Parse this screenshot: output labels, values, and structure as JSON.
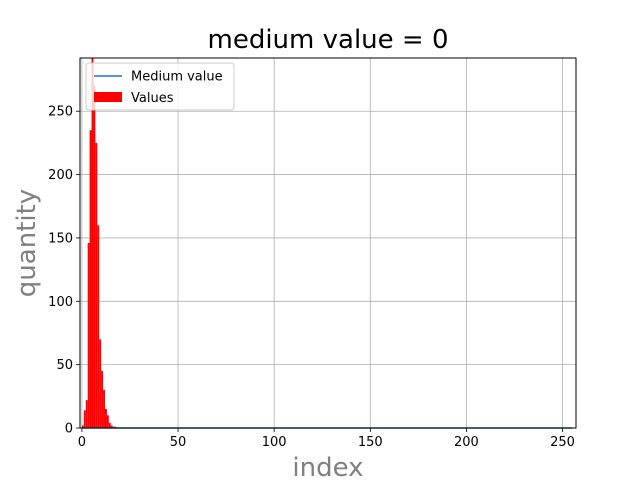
{
  "chart_data": {
    "type": "bar",
    "title": "medium value = 0",
    "xlabel": "index",
    "ylabel": "quantity",
    "xlim": [
      -1,
      257
    ],
    "ylim": [
      0,
      292
    ],
    "x_ticks": [
      0,
      50,
      100,
      150,
      200,
      250
    ],
    "y_ticks": [
      0,
      50,
      100,
      150,
      200,
      250
    ],
    "grid": true,
    "legend_position": "upper left",
    "series": [
      {
        "name": "Medium value",
        "type": "line",
        "color": "#1f77b4",
        "x": [
          0,
          255
        ],
        "y": [
          0,
          0
        ]
      },
      {
        "name": "Values",
        "type": "bar",
        "color": "#ff0000",
        "x": [
          0,
          1,
          2,
          3,
          4,
          5,
          6,
          7,
          8,
          9,
          10,
          11,
          12,
          13,
          14,
          15,
          16,
          17
        ],
        "values": [
          2,
          14,
          22,
          146,
          235,
          292,
          270,
          225,
          160,
          70,
          45,
          30,
          15,
          10,
          4,
          2,
          1,
          1
        ]
      }
    ]
  }
}
